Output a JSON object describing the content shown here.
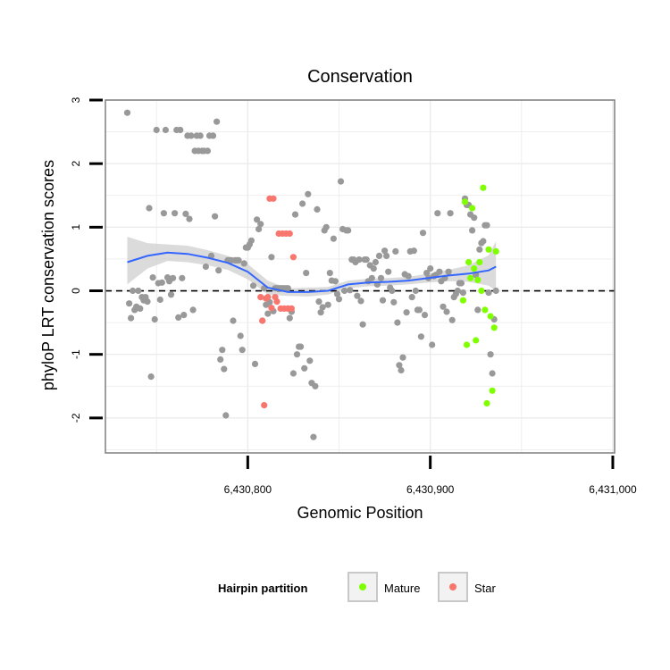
{
  "chart_data": {
    "type": "scatter",
    "title": "Conservation",
    "xlabel": "Genomic Position",
    "ylabel": "phyloP LRT conservation scores",
    "xlim": [
      6430722,
      6431001
    ],
    "ylim": [
      -2.55,
      3.0
    ],
    "x_ticks": [
      6430800,
      6430900,
      6431000
    ],
    "x_tick_labels": [
      "6,430,800",
      "6,430,900",
      "6,431,000"
    ],
    "y_ticks": [
      -2,
      -1,
      0,
      1,
      2,
      3
    ],
    "y_tick_labels": [
      "-2",
      "-1",
      "0",
      "1",
      "2",
      "3"
    ],
    "reference_line": {
      "y": 0,
      "style": "dashed"
    },
    "colors": {
      "background": "#ffffff",
      "grid": "#ebebeb",
      "other": "#999999",
      "mature": "#7fff00",
      "star": "#f8766d",
      "smooth": "#3366ff",
      "ribbon": "#cccccc",
      "border": "#7f7f7f"
    },
    "legend": {
      "title": "Hairpin partition",
      "position": "bottom",
      "entries": [
        {
          "label": "Mature",
          "color": "#7fff00"
        },
        {
          "label": "Star",
          "color": "#f8766d"
        }
      ]
    },
    "series": [
      {
        "name": "Other",
        "color": "#999999",
        "points": [
          [
            6430734,
            2.8
          ],
          [
            6430735,
            -0.2
          ],
          [
            6430736,
            -0.43
          ],
          [
            6430737,
            0.0
          ],
          [
            6430738,
            -0.3
          ],
          [
            6430739,
            -0.25
          ],
          [
            6430740,
            0.0
          ],
          [
            6430741,
            -0.28
          ],
          [
            6430742,
            -0.1
          ],
          [
            6430743,
            -0.15
          ],
          [
            6430744,
            -0.1
          ],
          [
            6430745,
            -0.17
          ],
          [
            6430746,
            1.3
          ],
          [
            6430747,
            -1.35
          ],
          [
            6430748,
            0.21
          ],
          [
            6430749,
            -0.45
          ],
          [
            6430750,
            2.53
          ],
          [
            6430751,
            0.12
          ],
          [
            6430752,
            -0.14
          ],
          [
            6430753,
            0.13
          ],
          [
            6430754,
            1.22
          ],
          [
            6430755,
            2.53
          ],
          [
            6430756,
            0.21
          ],
          [
            6430757,
            0.15
          ],
          [
            6430758,
            -0.06
          ],
          [
            6430759,
            0.2
          ],
          [
            6430760,
            1.22
          ],
          [
            6430761,
            2.53
          ],
          [
            6430762,
            -0.42
          ],
          [
            6430763,
            2.53
          ],
          [
            6430764,
            0.2
          ],
          [
            6430765,
            -0.38
          ],
          [
            6430766,
            1.21
          ],
          [
            6430767,
            2.44
          ],
          [
            6430768,
            1.13
          ],
          [
            6430769,
            2.44
          ],
          [
            6430770,
            -0.3
          ],
          [
            6430771,
            2.2
          ],
          [
            6430772,
            2.44
          ],
          [
            6430773,
            2.2
          ],
          [
            6430774,
            2.44
          ],
          [
            6430775,
            2.2
          ],
          [
            6430776,
            2.2
          ],
          [
            6430777,
            0.38
          ],
          [
            6430778,
            2.2
          ],
          [
            6430779,
            2.44
          ],
          [
            6430780,
            0.55
          ],
          [
            6430781,
            2.44
          ],
          [
            6430782,
            1.17
          ],
          [
            6430783,
            2.66
          ],
          [
            6430784,
            0.32
          ],
          [
            6430785,
            -1.08
          ],
          [
            6430786,
            -0.93
          ],
          [
            6430787,
            -1.23
          ],
          [
            6430788,
            -1.96
          ],
          [
            6430789,
            0.48
          ],
          [
            6430790,
            0.48
          ],
          [
            6430791,
            0.48
          ],
          [
            6430792,
            -0.47
          ],
          [
            6430793,
            0.48
          ],
          [
            6430794,
            0.48
          ],
          [
            6430795,
            0.48
          ],
          [
            6430796,
            -0.71
          ],
          [
            6430797,
            -0.93
          ],
          [
            6430798,
            0.43
          ],
          [
            6430799,
            0.68
          ],
          [
            6430800,
            0.68
          ],
          [
            6430801,
            0.73
          ],
          [
            6430802,
            0.79
          ],
          [
            6430803,
            0.08
          ],
          [
            6430804,
            -1.15
          ],
          [
            6430805,
            1.12
          ],
          [
            6430806,
            0.97
          ],
          [
            6430807,
            1.05
          ],
          [
            6430808,
            -0.47
          ],
          [
            6430809,
            0.04
          ],
          [
            6430810,
            -0.22
          ],
          [
            6430811,
            -0.36
          ],
          [
            6430812,
            -0.18
          ],
          [
            6430813,
            0.53
          ],
          [
            6430814,
            -0.32
          ],
          [
            6430815,
            0.04
          ],
          [
            6430816,
            0.04
          ],
          [
            6430817,
            0.04
          ],
          [
            6430818,
            0.04
          ],
          [
            6430819,
            0.04
          ],
          [
            6430820,
            0.04
          ],
          [
            6430821,
            0.04
          ],
          [
            6430822,
            0.04
          ],
          [
            6430823,
            -0.43
          ],
          [
            6430824,
            -0.33
          ],
          [
            6430825,
            -1.3
          ],
          [
            6430826,
            1.2
          ],
          [
            6430827,
            -1.0
          ],
          [
            6430828,
            -0.88
          ],
          [
            6430829,
            -0.88
          ],
          [
            6430830,
            1.37
          ],
          [
            6430831,
            -1.22
          ],
          [
            6430832,
            0.28
          ],
          [
            6430833,
            1.52
          ],
          [
            6430834,
            -1.1
          ],
          [
            6430835,
            -1.45
          ],
          [
            6430836,
            -2.3
          ],
          [
            6430837,
            -1.5
          ],
          [
            6430838,
            1.28
          ],
          [
            6430839,
            -0.17
          ],
          [
            6430840,
            -0.34
          ],
          [
            6430841,
            -0.26
          ],
          [
            6430842,
            0.95
          ],
          [
            6430843,
            1.0
          ],
          [
            6430844,
            -0.22
          ],
          [
            6430845,
            0.28
          ],
          [
            6430846,
            0.16
          ],
          [
            6430847,
            0.82
          ],
          [
            6430848,
            0.15
          ],
          [
            6430849,
            -0.05
          ],
          [
            6430850,
            -0.13
          ],
          [
            6430851,
            1.72
          ],
          [
            6430852,
            0.97
          ],
          [
            6430853,
            0.0
          ],
          [
            6430854,
            0.95
          ],
          [
            6430855,
            0.95
          ],
          [
            6430856,
            0.01
          ],
          [
            6430857,
            0.49
          ],
          [
            6430858,
            0.49
          ],
          [
            6430859,
            0.45
          ],
          [
            6430860,
            -0.08
          ],
          [
            6430861,
            0.49
          ],
          [
            6430862,
            -0.16
          ],
          [
            6430863,
            -0.53
          ],
          [
            6430864,
            0.49
          ],
          [
            6430865,
            0.49
          ],
          [
            6430866,
            0.15
          ],
          [
            6430867,
            0.4
          ],
          [
            6430868,
            0.2
          ],
          [
            6430869,
            0.35
          ],
          [
            6430870,
            0.45
          ],
          [
            6430871,
            0.1
          ],
          [
            6430872,
            0.55
          ],
          [
            6430873,
            0.2
          ],
          [
            6430874,
            -0.15
          ],
          [
            6430875,
            0.63
          ],
          [
            6430876,
            0.55
          ],
          [
            6430877,
            0.3
          ],
          [
            6430878,
            0.05
          ],
          [
            6430879,
            0.0
          ],
          [
            6430880,
            -0.18
          ],
          [
            6430881,
            0.62
          ],
          [
            6430882,
            -0.5
          ],
          [
            6430883,
            -1.17
          ],
          [
            6430884,
            -1.25
          ],
          [
            6430885,
            -1.05
          ],
          [
            6430886,
            0.26
          ],
          [
            6430887,
            -0.34
          ],
          [
            6430888,
            0.23
          ],
          [
            6430889,
            0.62
          ],
          [
            6430890,
            -0.1
          ],
          [
            6430891,
            0.63
          ],
          [
            6430892,
            0.0
          ],
          [
            6430893,
            -0.3
          ],
          [
            6430894,
            -0.3
          ],
          [
            6430895,
            -0.72
          ],
          [
            6430896,
            0.91
          ],
          [
            6430897,
            -0.38
          ],
          [
            6430898,
            0.28
          ],
          [
            6430899,
            0.2
          ],
          [
            6430900,
            0.35
          ],
          [
            6430901,
            -0.85
          ],
          [
            6430902,
            0.23
          ],
          [
            6430903,
            0.25
          ],
          [
            6430904,
            1.22
          ],
          [
            6430905,
            0.3
          ],
          [
            6430906,
            0.15
          ],
          [
            6430907,
            -0.25
          ],
          [
            6430908,
            0.2
          ],
          [
            6430909,
            -0.33
          ],
          [
            6430910,
            0.3
          ],
          [
            6430911,
            1.22
          ],
          [
            6430912,
            -0.46
          ],
          [
            6430913,
            -0.1
          ],
          [
            6430914,
            -0.05
          ],
          [
            6430915,
            0.0
          ],
          [
            6430916,
            0.12
          ],
          [
            6430917,
            0.12
          ],
          [
            6430918,
            -0.03
          ],
          [
            6430919,
            1.45
          ],
          [
            6430920,
            1.35
          ],
          [
            6430921,
            1.35
          ],
          [
            6430922,
            1.2
          ],
          [
            6430923,
            0.95
          ],
          [
            6430924,
            1.15
          ],
          [
            6430925,
            0.25
          ],
          [
            6430926,
            -0.3
          ],
          [
            6430927,
            0.65
          ],
          [
            6430928,
            0.75
          ],
          [
            6430929,
            0.78
          ],
          [
            6430930,
            1.03
          ],
          [
            6430931,
            1.03
          ],
          [
            6430932,
            -0.03
          ],
          [
            6430933,
            -1.0
          ],
          [
            6430934,
            -1.3
          ],
          [
            6430935,
            -0.45
          ],
          [
            6430936,
            0.0
          ]
        ]
      },
      {
        "name": "Mature",
        "color": "#7fff00",
        "points": [
          [
            6430918,
            -0.15
          ],
          [
            6430919,
            1.4
          ],
          [
            6430920,
            -0.85
          ],
          [
            6430921,
            0.45
          ],
          [
            6430922,
            0.2
          ],
          [
            6430923,
            1.3
          ],
          [
            6430924,
            0.35
          ],
          [
            6430925,
            -0.78
          ],
          [
            6430926,
            0.17
          ],
          [
            6430927,
            0.45
          ],
          [
            6430928,
            0.0
          ],
          [
            6430929,
            1.62
          ],
          [
            6430930,
            -0.3
          ],
          [
            6430931,
            -1.77
          ],
          [
            6430932,
            0.65
          ],
          [
            6430933,
            -0.4
          ],
          [
            6430934,
            -1.57
          ],
          [
            6430935,
            -0.58
          ],
          [
            6430936,
            0.62
          ]
        ]
      },
      {
        "name": "Star",
        "color": "#f8766d",
        "points": [
          [
            6430807,
            -0.1
          ],
          [
            6430808,
            -0.47
          ],
          [
            6430809,
            -1.8
          ],
          [
            6430810,
            -0.12
          ],
          [
            6430811,
            -0.1
          ],
          [
            6430812,
            1.45
          ],
          [
            6430813,
            -0.27
          ],
          [
            6430814,
            1.45
          ],
          [
            6430815,
            -0.1
          ],
          [
            6430816,
            -0.17
          ],
          [
            6430817,
            0.9
          ],
          [
            6430818,
            -0.28
          ],
          [
            6430819,
            0.9
          ],
          [
            6430820,
            -0.28
          ],
          [
            6430821,
            0.9
          ],
          [
            6430822,
            -0.28
          ],
          [
            6430823,
            0.9
          ],
          [
            6430824,
            -0.28
          ],
          [
            6430825,
            0.53
          ]
        ]
      }
    ],
    "smooth_line": {
      "color": "#3366ff",
      "x": [
        6430734,
        6430745,
        6430756,
        6430767,
        6430778,
        6430789,
        6430800,
        6430811,
        6430822,
        6430833,
        6430844,
        6430855,
        6430866,
        6430877,
        6430888,
        6430899,
        6430910,
        6430921,
        6430932,
        6430936
      ],
      "y": [
        0.45,
        0.55,
        0.6,
        0.58,
        0.52,
        0.44,
        0.3,
        0.05,
        -0.02,
        -0.02,
        0.0,
        0.1,
        0.13,
        0.14,
        0.16,
        0.2,
        0.24,
        0.27,
        0.32,
        0.38
      ],
      "ci_lower": [
        0.1,
        0.35,
        0.47,
        0.45,
        0.4,
        0.33,
        0.18,
        -0.06,
        -0.08,
        -0.09,
        -0.06,
        0.04,
        0.07,
        0.08,
        0.1,
        0.13,
        0.15,
        0.14,
        0.08,
        0.0
      ],
      "ci_upper": [
        0.85,
        0.75,
        0.73,
        0.71,
        0.64,
        0.55,
        0.42,
        0.16,
        0.04,
        0.05,
        0.06,
        0.16,
        0.19,
        0.2,
        0.22,
        0.27,
        0.33,
        0.4,
        0.56,
        0.78
      ]
    }
  }
}
